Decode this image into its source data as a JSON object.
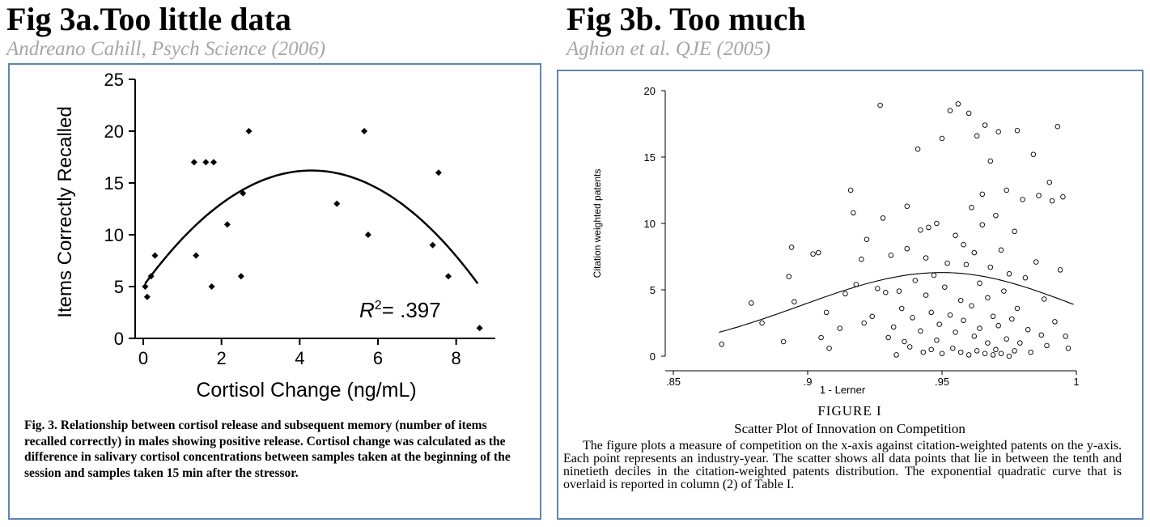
{
  "left": {
    "title": "Fig 3a.Too little data",
    "subtitle": "Andreano Cahill, Psych Science (2006)",
    "caption_label": "Fig. 3.",
    "caption_text": "Relationship between cortisol release and subsequent memory (number of items recalled correctly) in males showing positive release. Cortisol change was calculated as the difference in salivary cortisol concentrations between samples taken at the beginning of the session and samples taken 15 min after the stressor.",
    "annotation": "R² = .397"
  },
  "right": {
    "title": "Fig 3b. Too much",
    "subtitle": "Aghion et al. QJE (2005)",
    "figure_label": "FIGURE I",
    "figure_title": "Scatter Plot of Innovation on Competition",
    "caption_text": "The figure plots a measure of competition on the x-axis against citation-weighted patents on the y-axis. Each point represents an industry-year. The scatter shows all data points that lie in between the tenth and ninetieth deciles in the citation-weighted patents distribution. The exponential quadratic curve that is overlaid is reported in column (2) of Table I."
  },
  "chart_data": [
    {
      "type": "scatter",
      "xlabel": "Cortisol Change (ng/mL)",
      "ylabel": "Items Correctly Recalled",
      "xlim": [
        0,
        9
      ],
      "ylim": [
        0,
        25
      ],
      "xticks": [
        "0",
        "2",
        "4",
        "6",
        "8"
      ],
      "yticks": [
        "0",
        "5",
        "10",
        "15",
        "20",
        "25"
      ],
      "points": [
        [
          0.05,
          5
        ],
        [
          0.1,
          4
        ],
        [
          0.2,
          6
        ],
        [
          0.3,
          8
        ],
        [
          1.3,
          17
        ],
        [
          1.35,
          8
        ],
        [
          1.6,
          17
        ],
        [
          1.75,
          5
        ],
        [
          1.8,
          17
        ],
        [
          2.15,
          11
        ],
        [
          2.5,
          6
        ],
        [
          2.55,
          14
        ],
        [
          2.7,
          20
        ],
        [
          4.95,
          13
        ],
        [
          5.65,
          20
        ],
        [
          5.75,
          10
        ],
        [
          7.4,
          9
        ],
        [
          7.55,
          16
        ],
        [
          7.8,
          6
        ],
        [
          8.6,
          1
        ]
      ],
      "fit": {
        "type": "quadratic",
        "vertex_x": 4.3,
        "vertex_y": 16.2,
        "range": [
          0.05,
          8.55
        ]
      },
      "annotation": "R² = .397",
      "grid": false
    },
    {
      "type": "scatter",
      "xlabel": "1 - Lerner",
      "ylabel": "Citation weighted patents",
      "xlim": [
        0.85,
        1.0
      ],
      "ylim": [
        0,
        20
      ],
      "xticks": [
        ".85",
        ".9",
        ".95",
        "1"
      ],
      "yticks": [
        "0",
        "5",
        "10",
        "15",
        "20"
      ],
      "points": [
        [
          0.868,
          0.9
        ],
        [
          0.879,
          4.0
        ],
        [
          0.883,
          2.5
        ],
        [
          0.891,
          1.1
        ],
        [
          0.893,
          6.0
        ],
        [
          0.894,
          8.2
        ],
        [
          0.895,
          4.1
        ],
        [
          0.902,
          7.7
        ],
        [
          0.904,
          7.8
        ],
        [
          0.905,
          1.4
        ],
        [
          0.907,
          3.3
        ],
        [
          0.908,
          0.6
        ],
        [
          0.912,
          2.1
        ],
        [
          0.914,
          4.7
        ],
        [
          0.916,
          12.5
        ],
        [
          0.917,
          10.8
        ],
        [
          0.918,
          5.4
        ],
        [
          0.92,
          7.3
        ],
        [
          0.921,
          2.5
        ],
        [
          0.922,
          8.8
        ],
        [
          0.924,
          3.0
        ],
        [
          0.926,
          5.1
        ],
        [
          0.927,
          18.9
        ],
        [
          0.928,
          10.4
        ],
        [
          0.929,
          4.8
        ],
        [
          0.93,
          1.4
        ],
        [
          0.931,
          7.6
        ],
        [
          0.932,
          2.2
        ],
        [
          0.933,
          0.1
        ],
        [
          0.934,
          4.9
        ],
        [
          0.935,
          3.6
        ],
        [
          0.936,
          1.1
        ],
        [
          0.937,
          8.1
        ],
        [
          0.937,
          11.3
        ],
        [
          0.938,
          0.7
        ],
        [
          0.939,
          2.9
        ],
        [
          0.94,
          5.7
        ],
        [
          0.941,
          15.6
        ],
        [
          0.942,
          9.5
        ],
        [
          0.942,
          1.9
        ],
        [
          0.943,
          0.3
        ],
        [
          0.944,
          4.6
        ],
        [
          0.944,
          7.4
        ],
        [
          0.945,
          9.7
        ],
        [
          0.946,
          3.3
        ],
        [
          0.946,
          0.5
        ],
        [
          0.947,
          6.1
        ],
        [
          0.948,
          1.2
        ],
        [
          0.948,
          10.0
        ],
        [
          0.949,
          2.4
        ],
        [
          0.95,
          16.4
        ],
        [
          0.95,
          0.2
        ],
        [
          0.951,
          5.2
        ],
        [
          0.952,
          7.0
        ],
        [
          0.953,
          18.5
        ],
        [
          0.953,
          3.1
        ],
        [
          0.954,
          0.6
        ],
        [
          0.955,
          9.1
        ],
        [
          0.955,
          1.8
        ],
        [
          0.956,
          19.0
        ],
        [
          0.957,
          4.2
        ],
        [
          0.957,
          0.3
        ],
        [
          0.958,
          8.4
        ],
        [
          0.958,
          2.7
        ],
        [
          0.959,
          6.9
        ],
        [
          0.96,
          18.3
        ],
        [
          0.96,
          0.1
        ],
        [
          0.961,
          11.2
        ],
        [
          0.961,
          3.8
        ],
        [
          0.962,
          1.5
        ],
        [
          0.962,
          7.8
        ],
        [
          0.963,
          16.6
        ],
        [
          0.963,
          0.4
        ],
        [
          0.964,
          5.5
        ],
        [
          0.964,
          2.1
        ],
        [
          0.965,
          12.2
        ],
        [
          0.965,
          9.9
        ],
        [
          0.966,
          0.2
        ],
        [
          0.966,
          17.4
        ],
        [
          0.967,
          4.4
        ],
        [
          0.967,
          1.0
        ],
        [
          0.968,
          14.7
        ],
        [
          0.968,
          6.7
        ],
        [
          0.969,
          0.1
        ],
        [
          0.969,
          3.0
        ],
        [
          0.97,
          10.6
        ],
        [
          0.97,
          0.5
        ],
        [
          0.971,
          16.9
        ],
        [
          0.971,
          2.3
        ],
        [
          0.972,
          8.0
        ],
        [
          0.972,
          0.2
        ],
        [
          0.973,
          4.9
        ],
        [
          0.974,
          1.3
        ],
        [
          0.974,
          12.5
        ],
        [
          0.975,
          0.0
        ],
        [
          0.975,
          6.2
        ],
        [
          0.976,
          2.8
        ],
        [
          0.977,
          9.4
        ],
        [
          0.977,
          0.4
        ],
        [
          0.978,
          17.0
        ],
        [
          0.978,
          3.6
        ],
        [
          0.979,
          1.0
        ],
        [
          0.98,
          11.8
        ],
        [
          0.981,
          5.9
        ],
        [
          0.982,
          2.0
        ],
        [
          0.983,
          0.3
        ],
        [
          0.984,
          15.2
        ],
        [
          0.985,
          7.1
        ],
        [
          0.986,
          12.1
        ],
        [
          0.987,
          1.6
        ],
        [
          0.988,
          4.3
        ],
        [
          0.989,
          0.8
        ],
        [
          0.99,
          13.1
        ],
        [
          0.991,
          11.7
        ],
        [
          0.992,
          2.6
        ],
        [
          0.993,
          17.3
        ],
        [
          0.994,
          6.5
        ],
        [
          0.995,
          12.0
        ],
        [
          0.996,
          1.5
        ],
        [
          0.997,
          0.6
        ]
      ],
      "fit": {
        "type": "exponential quadratic",
        "range": [
          0.867,
          0.999
        ],
        "peak_x": 0.95,
        "peak_y": 6.3,
        "start_y": 1.8,
        "end_y": 3.9
      },
      "grid": false
    }
  ]
}
